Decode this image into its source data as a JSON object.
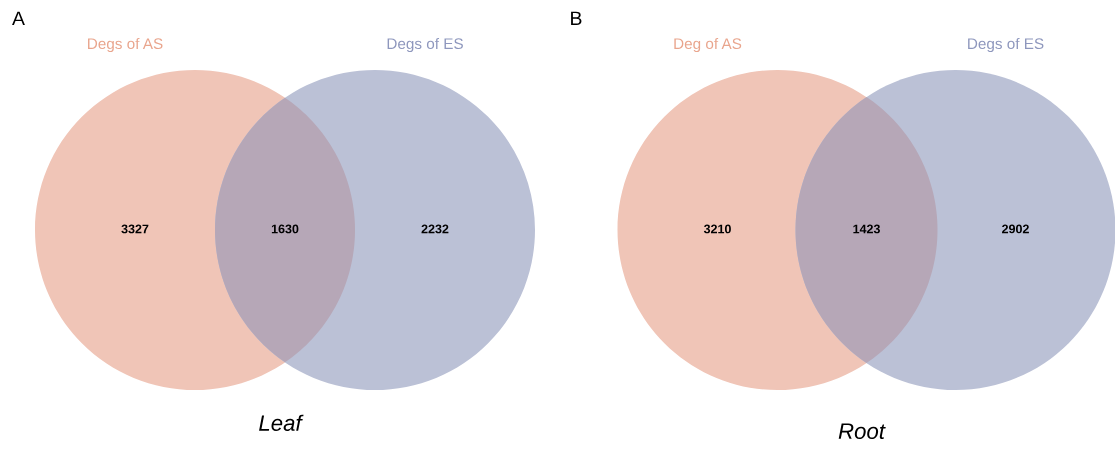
{
  "chart_data": [
    {
      "type": "other",
      "title": "A",
      "annotations": [
        "Leaf"
      ],
      "categories": [
        "Degs of AS",
        null,
        "Degs of ES"
      ],
      "data_labels": true,
      "values": [
        3327,
        1630,
        2232
      ],
      "colors": [
        "#f0c5b7",
        "#b6a7b7",
        "#bbc1d6"
      ]
    },
    {
      "type": "other",
      "title": "B",
      "annotations": [
        "Root"
      ],
      "categories": [
        "Deg of AS",
        null,
        "Degs of ES"
      ],
      "data_labels": true,
      "values": [
        3210,
        1423,
        2902
      ],
      "colors": [
        "#f0c5b7",
        "#b6a7b7",
        "#bbc1d6"
      ]
    }
  ]
}
